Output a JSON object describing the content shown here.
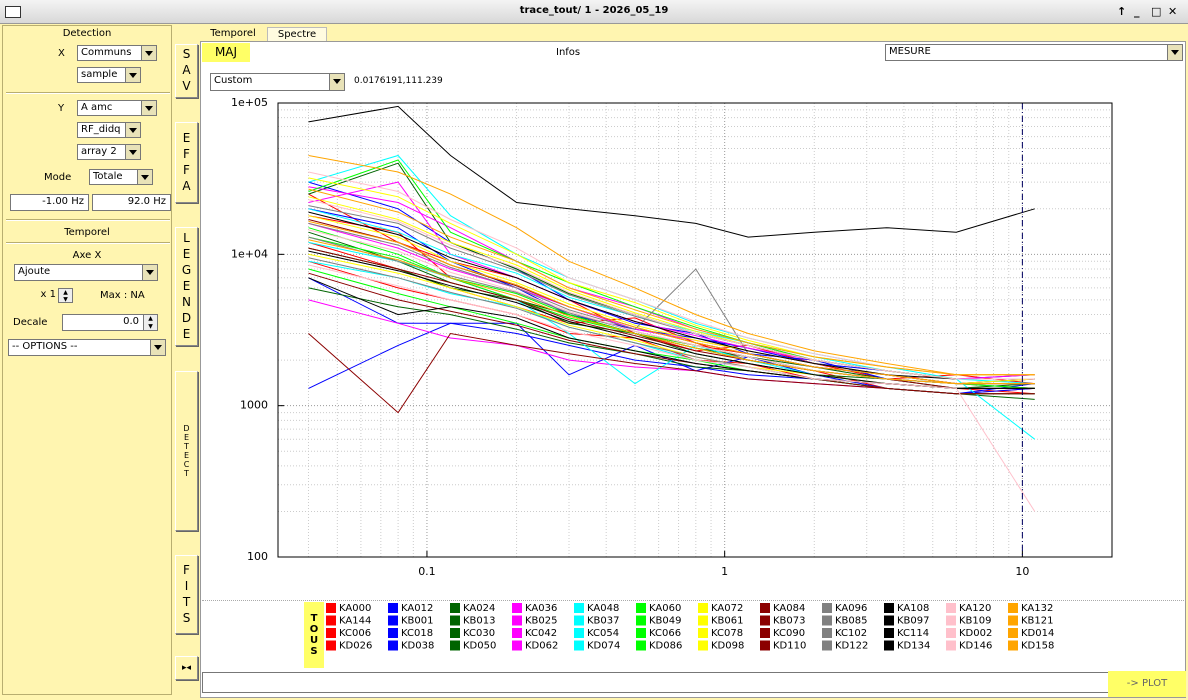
{
  "window": {
    "title": "trace_tout/ 1 - 2026_05_19"
  },
  "left_panel": {
    "detection_title": "Detection",
    "x_label": "X",
    "x_select": [
      "Communs",
      "sample"
    ],
    "y_label": "Y",
    "y_select": [
      "A amc",
      "RF_didq",
      "array 2"
    ],
    "mode_label": "Mode",
    "mode": "Totale",
    "freq_min": "-1.00 Hz",
    "freq_max": "92.0 Hz",
    "temporel_title": "Temporel",
    "axe_x_label": "Axe X",
    "axe_x": "Ajoute",
    "factor": "x 1",
    "max": "Max : NA",
    "decale_label": "Decale",
    "decale": "0.0",
    "options": "-- OPTIONS --"
  },
  "side_buttons": [
    "SAV",
    "EFFA",
    "LEGENDE",
    "DETECT",
    "FITS"
  ],
  "tabs": [
    "Temporel",
    "Spectre"
  ],
  "toolbar": {
    "maj": "MAJ",
    "infos": "Infos",
    "mesure": "MESURE"
  },
  "scale_select": "Custom",
  "cursor": "0.0176191,111.239",
  "legend_all": "TOUS",
  "plot_button": "-> PLOT",
  "chart_data": {
    "type": "line",
    "xscale": "log",
    "yscale": "log",
    "grid": true,
    "xlim": [
      0.0316,
      20
    ],
    "ylim": [
      100,
      100000
    ],
    "xticks": [
      0.1,
      1,
      10
    ],
    "yticks": [
      {
        "value": 100000,
        "label": "1e+05"
      },
      {
        "value": 10000,
        "label": "1e+04"
      },
      1000,
      100
    ],
    "marker_x": 10,
    "x": [
      0.04,
      0.08,
      0.12,
      0.2,
      0.3,
      0.5,
      0.8,
      1.2,
      2,
      3.5,
      6,
      11
    ],
    "series": [
      {
        "name": "KA000",
        "color": "#ff0000",
        "values": [
          25000,
          12000,
          9000,
          7000,
          5000,
          3000,
          2500,
          2200,
          1800,
          1600,
          1400,
          1500
        ]
      },
      {
        "name": "KA144",
        "color": "#ff0000",
        "values": [
          12000,
          8000,
          6000,
          4500,
          3500,
          3800,
          2600,
          2000,
          1700,
          1300,
          1200,
          1300
        ]
      },
      {
        "name": "KC006",
        "color": "#ff0000",
        "values": [
          18000,
          14000,
          7000,
          5000,
          4000,
          3000,
          2300,
          2500,
          1900,
          1500,
          1600,
          1400
        ]
      },
      {
        "name": "KD026",
        "color": "#ff0000",
        "values": [
          9000,
          6000,
          5000,
          4000,
          3000,
          2800,
          2000,
          1900,
          1500,
          1400,
          1300,
          1200
        ]
      },
      {
        "name": "KA012",
        "color": "#0000ff",
        "values": [
          1300,
          2500,
          3500,
          3500,
          1600,
          2500,
          1700,
          2100,
          1600,
          1300,
          1200,
          1400
        ]
      },
      {
        "name": "KB001",
        "color": "#0000ff",
        "values": [
          20000,
          15000,
          9000,
          6000,
          4000,
          3200,
          2800,
          2400,
          1900,
          1700,
          1500,
          1600
        ]
      },
      {
        "name": "KC018",
        "color": "#0000ff",
        "values": [
          30000,
          20000,
          12000,
          8000,
          5000,
          3500,
          3000,
          2200,
          2000,
          1500,
          1400,
          1500
        ]
      },
      {
        "name": "KD038",
        "color": "#0000ff",
        "values": [
          7000,
          3500,
          3500,
          3000,
          2500,
          2000,
          1800,
          1600,
          1500,
          1300,
          1200,
          1300
        ]
      },
      {
        "name": "KA024",
        "color": "#006400",
        "values": [
          14000,
          9000,
          6500,
          5000,
          3500,
          3000,
          2400,
          2100,
          1800,
          1500,
          1400,
          1300
        ]
      },
      {
        "name": "KB013",
        "color": "#006400",
        "values": [
          25000,
          40000,
          12000,
          8000,
          5500,
          4000,
          3000,
          2500,
          2000,
          1700,
          1500,
          1500
        ]
      },
      {
        "name": "KC030",
        "color": "#006400",
        "values": [
          11000,
          8000,
          6000,
          5000,
          4000,
          3000,
          2200,
          1900,
          1600,
          1500,
          1300,
          1400
        ]
      },
      {
        "name": "KD050",
        "color": "#006400",
        "values": [
          6000,
          4500,
          4000,
          3200,
          2600,
          2200,
          1800,
          1700,
          1500,
          1300,
          1200,
          1100
        ]
      },
      {
        "name": "KA036",
        "color": "#ff00ff",
        "values": [
          28000,
          22000,
          15000,
          9000,
          6000,
          4500,
          3200,
          2600,
          2000,
          1700,
          1500,
          1600
        ]
      },
      {
        "name": "KB025",
        "color": "#ff00ff",
        "values": [
          5000,
          3500,
          2800,
          2500,
          2000,
          1800,
          1700,
          1500,
          1400,
          1300,
          1200,
          1200
        ]
      },
      {
        "name": "KC042",
        "color": "#ff00ff",
        "values": [
          16000,
          11000,
          8000,
          6000,
          4500,
          3200,
          2700,
          2300,
          1900,
          1600,
          1400,
          1400
        ]
      },
      {
        "name": "KD062",
        "color": "#ff00ff",
        "values": [
          22000,
          30000,
          10000,
          7000,
          5000,
          3600,
          2900,
          2400,
          2000,
          1700,
          1500,
          1500
        ]
      },
      {
        "name": "KA048",
        "color": "#00ffff",
        "values": [
          30000,
          45000,
          18000,
          10000,
          7000,
          5000,
          3500,
          2800,
          2200,
          1800,
          1500,
          1400
        ]
      },
      {
        "name": "KB037",
        "color": "#00ffff",
        "values": [
          12000,
          9000,
          7000,
          5000,
          3000,
          1400,
          2500,
          2000,
          1600,
          1400,
          1300,
          1300
        ]
      },
      {
        "name": "KC054",
        "color": "#00ffff",
        "values": [
          20000,
          14000,
          10000,
          7500,
          5200,
          3900,
          3100,
          2600,
          2100,
          1700,
          1500,
          600
        ]
      },
      {
        "name": "KD074",
        "color": "#00ffff",
        "values": [
          9000,
          7000,
          5500,
          4500,
          3300,
          2600,
          2000,
          1800,
          1500,
          1300,
          1200,
          1200
        ]
      },
      {
        "name": "KA060",
        "color": "#00ff00",
        "values": [
          15000,
          10000,
          7000,
          5000,
          3800,
          3000,
          2500,
          2100,
          1700,
          1500,
          1400,
          1300
        ]
      },
      {
        "name": "KB049",
        "color": "#00ff00",
        "values": [
          26000,
          42000,
          14000,
          9000,
          6500,
          4500,
          3300,
          2600,
          2000,
          1700,
          1500,
          1500
        ]
      },
      {
        "name": "KC066",
        "color": "#00ff00",
        "values": [
          8000,
          5500,
          4500,
          3500,
          2800,
          2300,
          2000,
          1700,
          1500,
          1300,
          1200,
          1200
        ]
      },
      {
        "name": "KD086",
        "color": "#00ff00",
        "values": [
          13000,
          9500,
          7000,
          5500,
          4000,
          3000,
          2400,
          2000,
          1700,
          1500,
          1400,
          1400
        ]
      },
      {
        "name": "KA072",
        "color": "#ffff00",
        "values": [
          32000,
          24000,
          16000,
          10000,
          6500,
          4800,
          3400,
          2700,
          2100,
          1800,
          1600,
          1600
        ]
      },
      {
        "name": "KB061",
        "color": "#ffff00",
        "values": [
          18000,
          13000,
          9000,
          6500,
          4700,
          3400,
          2700,
          2300,
          1900,
          1600,
          1400,
          1500
        ]
      },
      {
        "name": "KC078",
        "color": "#ffff00",
        "values": [
          10000,
          7500,
          6000,
          4500,
          3400,
          2700,
          2100,
          1800,
          1600,
          1400,
          1300,
          1300
        ]
      },
      {
        "name": "KD098",
        "color": "#ffff00",
        "values": [
          24000,
          17000,
          12000,
          8500,
          5800,
          4100,
          3100,
          2500,
          2000,
          1700,
          1500,
          1500
        ]
      },
      {
        "name": "KA084",
        "color": "#8b0000",
        "values": [
          3000,
          900,
          3000,
          2500,
          2200,
          1900,
          1700,
          1500,
          1400,
          1300,
          1200,
          1200
        ]
      },
      {
        "name": "KB073",
        "color": "#8b0000",
        "values": [
          11000,
          8000,
          6500,
          5000,
          3700,
          2900,
          2300,
          2000,
          1700,
          1500,
          1300,
          1300
        ]
      },
      {
        "name": "KC090",
        "color": "#8b0000",
        "values": [
          17000,
          12000,
          8500,
          6200,
          4500,
          3300,
          2600,
          2200,
          1800,
          1600,
          1400,
          1400
        ]
      },
      {
        "name": "KD110",
        "color": "#8b0000",
        "values": [
          7500,
          5000,
          4200,
          3400,
          2700,
          2200,
          1900,
          1700,
          1500,
          1300,
          1200,
          1200
        ]
      },
      {
        "name": "KA096",
        "color": "#808080",
        "values": [
          21000,
          16000,
          11000,
          7800,
          5400,
          3900,
          3000,
          2500,
          2000,
          1700,
          1500,
          1500
        ]
      },
      {
        "name": "KB085",
        "color": "#808080",
        "values": [
          13000,
          9000,
          7200,
          5600,
          4100,
          3100,
          2500,
          2100,
          1700,
          1500,
          1400,
          1400
        ]
      },
      {
        "name": "KC102",
        "color": "#808080",
        "values": [
          9500,
          7000,
          5600,
          4400,
          3300,
          2600,
          2100,
          1800,
          1500,
          1400,
          1300,
          1300
        ]
      },
      {
        "name": "KD122",
        "color": "#808080",
        "values": [
          16000,
          11500,
          8200,
          6000,
          4300,
          3200,
          8000,
          2200,
          1800,
          1600,
          1400,
          1400
        ]
      },
      {
        "name": "KA108",
        "color": "#000000",
        "values": [
          75000,
          95000,
          45000,
          22000,
          20000,
          18000,
          16000,
          13000,
          14000,
          15000,
          14000,
          20000
        ]
      },
      {
        "name": "KB097",
        "color": "#000000",
        "values": [
          7000,
          4000,
          4500,
          3800,
          2800,
          2300,
          1900,
          1700,
          1500,
          1400,
          1300,
          1300
        ]
      },
      {
        "name": "KC114",
        "color": "#000000",
        "values": [
          19000,
          13500,
          9500,
          7000,
          5000,
          3600,
          2800,
          2300,
          1900,
          1600,
          1500,
          1500
        ]
      },
      {
        "name": "KD134",
        "color": "#000000",
        "values": [
          10500,
          7800,
          6200,
          4800,
          3600,
          2800,
          2200,
          1900,
          1600,
          1400,
          1300,
          1300
        ]
      },
      {
        "name": "KA120",
        "color": "#ffc0cb",
        "values": [
          35000,
          26000,
          17000,
          11000,
          7000,
          5000,
          3600,
          2800,
          2200,
          1800,
          1600,
          1600
        ]
      },
      {
        "name": "KB109",
        "color": "#ffc0cb",
        "values": [
          14500,
          10500,
          7600,
          5700,
          4200,
          3100,
          2500,
          2100,
          1700,
          1500,
          1400,
          1400
        ]
      },
      {
        "name": "KD002",
        "color": "#ffc0cb",
        "values": [
          23000,
          16500,
          11500,
          8200,
          5600,
          4000,
          3000,
          2500,
          2000,
          1700,
          1500,
          1500
        ]
      },
      {
        "name": "KD146",
        "color": "#ffc0cb",
        "values": [
          8500,
          6200,
          5000,
          4000,
          3100,
          2500,
          2000,
          1800,
          1500,
          1400,
          1300,
          200
        ]
      },
      {
        "name": "KA132",
        "color": "#ffa500",
        "values": [
          45000,
          35000,
          25000,
          15000,
          9000,
          6000,
          4000,
          3000,
          2300,
          1900,
          1600,
          1600
        ]
      },
      {
        "name": "KB121",
        "color": "#ffa500",
        "values": [
          16500,
          12000,
          8500,
          6300,
          4500,
          3300,
          2600,
          2200,
          1800,
          1600,
          1400,
          1400
        ]
      },
      {
        "name": "KD014",
        "color": "#ffa500",
        "values": [
          27000,
          19000,
          13000,
          9000,
          6000,
          4300,
          3200,
          2600,
          2100,
          1800,
          1600,
          1600
        ]
      },
      {
        "name": "KD158",
        "color": "#ffa500",
        "values": [
          12500,
          9200,
          7000,
          5300,
          3900,
          3000,
          2400,
          2000,
          1700,
          1500,
          1400,
          1400
        ]
      }
    ]
  }
}
